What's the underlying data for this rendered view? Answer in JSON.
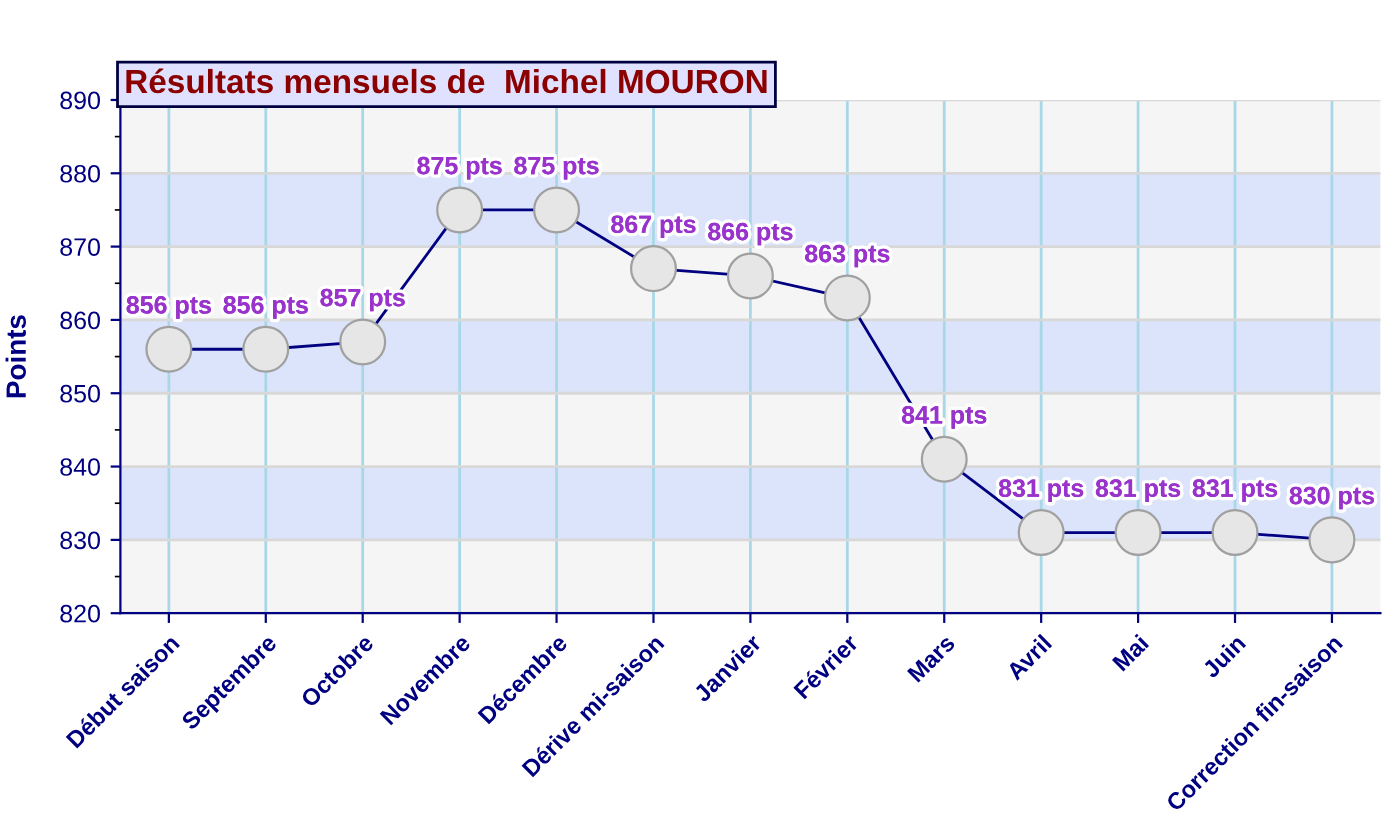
{
  "chart_data": {
    "type": "line",
    "title": "Résultats mensuels de  Michel MOURON",
    "ylabel": "Points",
    "categories": [
      "Début saison",
      "Septembre",
      "Octobre",
      "Novembre",
      "Décembre",
      "Dérive mi-saison",
      "Janvier",
      "Février",
      "Mars",
      "Avril",
      "Mai",
      "Juin",
      "Correction fin-saison"
    ],
    "series": [
      {
        "color": "#000080",
        "values": [
          856,
          856,
          857,
          875,
          875,
          867,
          866,
          863,
          841,
          831,
          831,
          831,
          830
        ],
        "value_labels": [
          "856 pts",
          "856 pts",
          "857 pts",
          "875 pts",
          "875 pts",
          "867 pts",
          "866 pts",
          "863 pts",
          "841 pts",
          "831 pts",
          "831 pts",
          "831 pts",
          "830 pts"
        ]
      }
    ],
    "ylim": [
      820,
      890
    ],
    "yticks": [
      820,
      830,
      840,
      850,
      860,
      870,
      880,
      890
    ],
    "grid": true,
    "marker": "circle",
    "line_style": "solid",
    "bands": [
      {
        "axis": "y",
        "from": 830,
        "to": 840,
        "color": "#dbe4fb"
      },
      {
        "axis": "y",
        "from": 850,
        "to": 860,
        "color": "#dbe4fb"
      },
      {
        "axis": "y",
        "from": 870,
        "to": 880,
        "color": "#dbe4fb"
      }
    ]
  }
}
